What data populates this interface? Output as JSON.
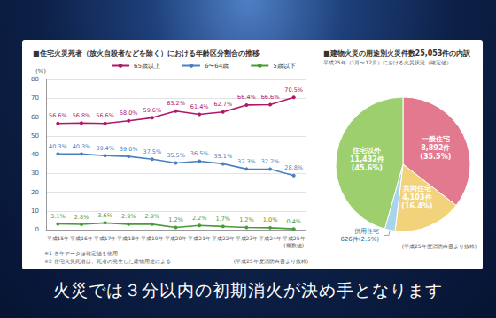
{
  "chart_data": [
    {
      "type": "line",
      "title": "■住宅火災死者（放火自殺者などを除く）における年齢区分割合の推移",
      "ylabel": "(%)",
      "categories": [
        "平成15年",
        "平成16年",
        "平成17年",
        "平成18年",
        "平成19年",
        "平成20年",
        "平成21年",
        "平成22年",
        "平成23年",
        "平成24年",
        "平成25年\n(概数値)"
      ],
      "series": [
        {
          "name": "65歳以上",
          "color": "#b0176b",
          "values": [
            56.6,
            56.8,
            56.6,
            58.0,
            59.6,
            63.2,
            61.4,
            62.7,
            66.4,
            66.6,
            70.5
          ],
          "value_labels": [
            "56.6%",
            "56.8%",
            "56.6%",
            "58.0%",
            "59.6%",
            "63.2%",
            "61.4%",
            "62.7%",
            "66.4%",
            "66.6%",
            "70.5%"
          ]
        },
        {
          "name": "6〜64歳",
          "color": "#4a7fc0",
          "values": [
            40.3,
            40.3,
            39.4,
            39.0,
            37.5,
            35.5,
            36.5,
            35.1,
            32.3,
            32.2,
            28.8
          ],
          "value_labels": [
            "40.3%",
            "40.3%",
            "39.4%",
            "39.0%",
            "37.5%",
            "35.5%",
            "36.5%",
            "35.1%",
            "32.3%",
            "32.2%",
            "28.8%"
          ]
        },
        {
          "name": "5歳以下",
          "color": "#4a9a3a",
          "values": [
            3.1,
            2.8,
            3.6,
            2.9,
            2.9,
            1.2,
            2.2,
            1.7,
            1.2,
            1.0,
            0.4
          ],
          "value_labels": [
            "3.1%",
            "2.8%",
            "3.6%",
            "2.9%",
            "2.9%",
            "1.2%",
            "2.2%",
            "1.7%",
            "1.2%",
            "1.0%",
            "0.4%"
          ]
        }
      ],
      "ylim": [
        0,
        80
      ],
      "yticks": [
        0,
        10,
        20,
        30,
        40,
        50,
        60,
        70,
        80
      ],
      "grid": true,
      "legend": "top",
      "marker": "circle",
      "line_style": "solid",
      "data_labels": true,
      "notes": [
        "※1 各年データは確定値を使用",
        "※2 住宅火災死者は、死者の発生した建物用途による"
      ],
      "source": "(平成25年度消防白書より抜粋)"
    },
    {
      "type": "pie",
      "title": "■建物火災の用途別火災件数25,053件の内訳",
      "subtitle": "平成25年（1月〜12月）における火災状況（確定値）",
      "categories": [
        "一般住宅",
        "共同住宅",
        "併用住宅",
        "住宅以外"
      ],
      "values": [
        8892,
        4103,
        626,
        11432
      ],
      "value_labels": [
        "8,892件\n(35.5%)",
        "4,103件\n(16.4%)",
        "626件(2.5%)",
        "11,432件\n(45.6%)"
      ],
      "colors": [
        "#e2798f",
        "#f3d27c",
        "#a8d4ec",
        "#9dcf6f"
      ],
      "data_labels": true,
      "source": "(平成25年度消防白書より抜粋)"
    }
  ],
  "caption": "火災では３分以内の初期消火が決め手となります"
}
